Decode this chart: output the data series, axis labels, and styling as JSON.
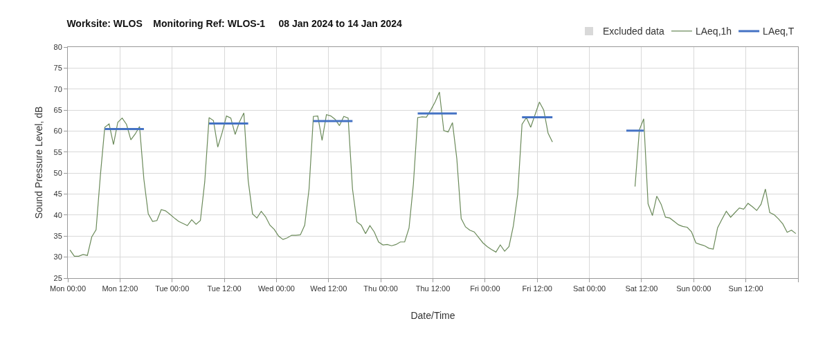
{
  "chart_data": {
    "type": "line",
    "title": "Worksite: WLOS    Monitoring Ref: WLOS-1     08 Jan 2024 to 14 Jan 2024",
    "xlabel": "Date/Time",
    "ylabel": "Sound Pressure Level, dB",
    "xlim": [
      "2024-01-08T00:00",
      "2024-01-15T00:00"
    ],
    "ylim": [
      25,
      80
    ],
    "xticks": [
      {
        "value": "2024-01-08T00:00",
        "label": "Mon 00:00"
      },
      {
        "value": "2024-01-08T12:00",
        "label": "Mon 12:00"
      },
      {
        "value": "2024-01-09T00:00",
        "label": "Tue 00:00"
      },
      {
        "value": "2024-01-09T12:00",
        "label": "Tue 12:00"
      },
      {
        "value": "2024-01-10T00:00",
        "label": "Wed 00:00"
      },
      {
        "value": "2024-01-10T12:00",
        "label": "Wed 12:00"
      },
      {
        "value": "2024-01-11T00:00",
        "label": "Thu 00:00"
      },
      {
        "value": "2024-01-11T12:00",
        "label": "Thu 12:00"
      },
      {
        "value": "2024-01-12T00:00",
        "label": "Fri 00:00"
      },
      {
        "value": "2024-01-12T12:00",
        "label": "Fri 12:00"
      },
      {
        "value": "2024-01-13T00:00",
        "label": "Sat 00:00"
      },
      {
        "value": "2024-01-13T12:00",
        "label": "Sat 12:00"
      },
      {
        "value": "2024-01-14T00:00",
        "label": "Sun 00:00"
      },
      {
        "value": "2024-01-14T12:00",
        "label": "Sun 12:00"
      },
      {
        "value": "2024-01-15T00:00",
        "label": null
      }
    ],
    "yticks": [
      25,
      30,
      35,
      40,
      45,
      50,
      55,
      60,
      65,
      70,
      75,
      80
    ],
    "grid": true,
    "legend": "top right",
    "line_style": "solid",
    "marker": "none",
    "series": [
      {
        "name": "Excluded data",
        "type": "bar",
        "color": "#d9d9d9"
      },
      {
        "name": "LAeq,1h",
        "color": "#6b8a5a",
        "x": [
          "2024-01-08T00:30",
          "2024-01-08T01:30",
          "2024-01-08T02:30",
          "2024-01-08T03:30",
          "2024-01-08T04:30",
          "2024-01-08T05:30",
          "2024-01-08T06:30",
          "2024-01-08T07:30",
          "2024-01-08T08:30",
          "2024-01-08T09:30",
          "2024-01-08T10:30",
          "2024-01-08T11:30",
          "2024-01-08T12:30",
          "2024-01-08T13:30",
          "2024-01-08T14:30",
          "2024-01-08T15:30",
          "2024-01-08T16:30",
          "2024-01-08T17:30",
          "2024-01-08T18:30",
          "2024-01-08T19:30",
          "2024-01-08T20:30",
          "2024-01-08T21:30",
          "2024-01-08T22:30",
          "2024-01-08T23:30",
          "2024-01-09T00:30",
          "2024-01-09T01:30",
          "2024-01-09T02:30",
          "2024-01-09T03:30",
          "2024-01-09T04:30",
          "2024-01-09T05:30",
          "2024-01-09T06:30",
          "2024-01-09T07:30",
          "2024-01-09T08:30",
          "2024-01-09T09:30",
          "2024-01-09T10:30",
          "2024-01-09T11:30",
          "2024-01-09T12:30",
          "2024-01-09T13:30",
          "2024-01-09T14:30",
          "2024-01-09T15:30",
          "2024-01-09T16:30",
          "2024-01-09T17:30",
          "2024-01-09T18:30",
          "2024-01-09T19:30",
          "2024-01-09T20:30",
          "2024-01-09T21:30",
          "2024-01-09T22:30",
          "2024-01-09T23:30",
          "2024-01-10T00:30",
          "2024-01-10T01:30",
          "2024-01-10T02:30",
          "2024-01-10T03:30",
          "2024-01-10T04:30",
          "2024-01-10T05:30",
          "2024-01-10T06:30",
          "2024-01-10T07:30",
          "2024-01-10T08:30",
          "2024-01-10T09:30",
          "2024-01-10T10:30",
          "2024-01-10T11:30",
          "2024-01-10T12:30",
          "2024-01-10T13:30",
          "2024-01-10T14:30",
          "2024-01-10T15:30",
          "2024-01-10T16:30",
          "2024-01-10T17:30",
          "2024-01-10T18:30",
          "2024-01-10T19:30",
          "2024-01-10T20:30",
          "2024-01-10T21:30",
          "2024-01-10T22:30",
          "2024-01-10T23:30",
          "2024-01-11T00:30",
          "2024-01-11T01:30",
          "2024-01-11T02:30",
          "2024-01-11T03:30",
          "2024-01-11T04:30",
          "2024-01-11T05:30",
          "2024-01-11T06:30",
          "2024-01-11T07:30",
          "2024-01-11T08:30",
          "2024-01-11T09:30",
          "2024-01-11T10:30",
          "2024-01-11T11:30",
          "2024-01-11T12:30",
          "2024-01-11T13:30",
          "2024-01-11T14:30",
          "2024-01-11T15:30",
          "2024-01-11T16:30",
          "2024-01-11T17:30",
          "2024-01-11T18:30",
          "2024-01-11T19:30",
          "2024-01-11T20:30",
          "2024-01-11T21:30",
          "2024-01-11T22:30",
          "2024-01-11T23:30",
          "2024-01-12T00:30",
          "2024-01-12T01:30",
          "2024-01-12T02:30",
          "2024-01-12T03:30",
          "2024-01-12T04:30",
          "2024-01-12T05:30",
          "2024-01-12T06:30",
          "2024-01-12T07:30",
          "2024-01-12T08:30",
          "2024-01-12T09:30",
          "2024-01-12T10:30",
          "2024-01-12T11:30",
          "2024-01-12T12:30",
          "2024-01-12T13:30",
          "2024-01-12T14:30",
          "2024-01-12T15:30",
          "2024-01-13T00:00",
          "2024-01-13T10:30",
          "2024-01-13T11:30",
          "2024-01-13T12:30",
          "2024-01-13T13:30",
          "2024-01-13T14:30",
          "2024-01-13T15:30",
          "2024-01-13T16:30",
          "2024-01-13T17:30",
          "2024-01-13T18:30",
          "2024-01-13T19:30",
          "2024-01-13T20:30",
          "2024-01-13T21:30",
          "2024-01-13T22:30",
          "2024-01-13T23:30",
          "2024-01-14T00:30",
          "2024-01-14T01:30",
          "2024-01-14T02:30",
          "2024-01-14T03:30",
          "2024-01-14T04:30",
          "2024-01-14T05:30",
          "2024-01-14T06:30",
          "2024-01-14T07:30",
          "2024-01-14T08:30",
          "2024-01-14T09:30",
          "2024-01-14T10:30",
          "2024-01-14T11:30",
          "2024-01-14T12:30",
          "2024-01-14T13:30",
          "2024-01-14T14:30",
          "2024-01-14T15:30",
          "2024-01-14T16:30",
          "2024-01-14T17:30",
          "2024-01-14T18:30",
          "2024-01-14T19:30",
          "2024-01-14T20:30",
          "2024-01-14T21:30",
          "2024-01-14T22:30",
          "2024-01-14T23:30"
        ],
        "values": [
          31.7,
          30.2,
          30.2,
          30.6,
          30.4,
          34.8,
          36.5,
          49.6,
          60.9,
          61.7,
          56.8,
          62.1,
          63.1,
          61.6,
          57.9,
          59.3,
          61.1,
          48.5,
          40.3,
          38.5,
          38.7,
          41.3,
          41.0,
          40.2,
          39.3,
          38.5,
          38.0,
          37.5,
          38.9,
          37.8,
          38.7,
          47.9,
          63.2,
          62.5,
          56.2,
          59.6,
          63.6,
          63.1,
          59.2,
          62.2,
          64.3,
          48.2,
          40.3,
          39.3,
          40.9,
          39.6,
          37.6,
          36.6,
          35.0,
          34.2,
          34.6,
          35.2,
          35.2,
          35.3,
          37.6,
          46.2,
          63.5,
          63.6,
          57.8,
          63.9,
          63.6,
          62.8,
          61.3,
          63.5,
          63.1,
          46.2,
          38.4,
          37.6,
          35.6,
          37.5,
          36.0,
          33.6,
          32.9,
          33.0,
          32.7,
          33.0,
          33.6,
          33.6,
          36.9,
          47.3,
          63.2,
          63.4,
          63.3,
          65.0,
          66.9,
          69.3,
          60.1,
          59.8,
          62.0,
          53.4,
          39.2,
          37.2,
          36.4,
          36.0,
          34.7,
          33.4,
          32.5,
          31.8,
          31.2,
          32.9,
          31.4,
          32.5,
          37.4,
          44.9,
          61.6,
          63.2,
          60.9,
          63.9,
          66.9,
          65.0,
          59.5,
          57.4,
          null,
          46.8,
          60.3,
          62.9,
          42.7,
          39.9,
          44.5,
          42.6,
          39.5,
          39.3,
          38.5,
          37.7,
          37.3,
          37.1,
          36.0,
          33.4,
          33.0,
          32.7,
          32.1,
          31.9,
          37.0,
          39.0,
          40.9,
          39.5,
          40.6,
          41.7,
          41.4,
          42.8,
          42.0,
          41.1,
          42.6,
          46.2,
          40.6,
          40.1,
          39.1,
          37.9,
          35.9,
          36.4,
          35.6
        ]
      },
      {
        "name": "LAeq,T",
        "color": "#4472c4",
        "x": [
          "2024-01-08T08:30",
          "2024-01-08T17:30",
          "2024-01-09T01:00",
          "2024-01-09T08:30",
          "2024-01-09T17:30",
          "2024-01-10T01:00",
          "2024-01-10T08:30",
          "2024-01-10T17:30",
          "2024-01-11T01:00",
          "2024-01-11T08:30",
          "2024-01-11T17:30",
          "2024-01-12T01:00",
          "2024-01-12T08:30",
          "2024-01-12T15:30",
          "2024-01-13T00:00",
          "2024-01-13T08:30",
          "2024-01-13T12:30"
        ],
        "values": [
          60.5,
          60.5,
          null,
          61.8,
          61.8,
          null,
          62.4,
          62.4,
          null,
          64.2,
          64.2,
          null,
          63.3,
          63.3,
          null,
          60.1,
          60.1
        ]
      }
    ]
  }
}
